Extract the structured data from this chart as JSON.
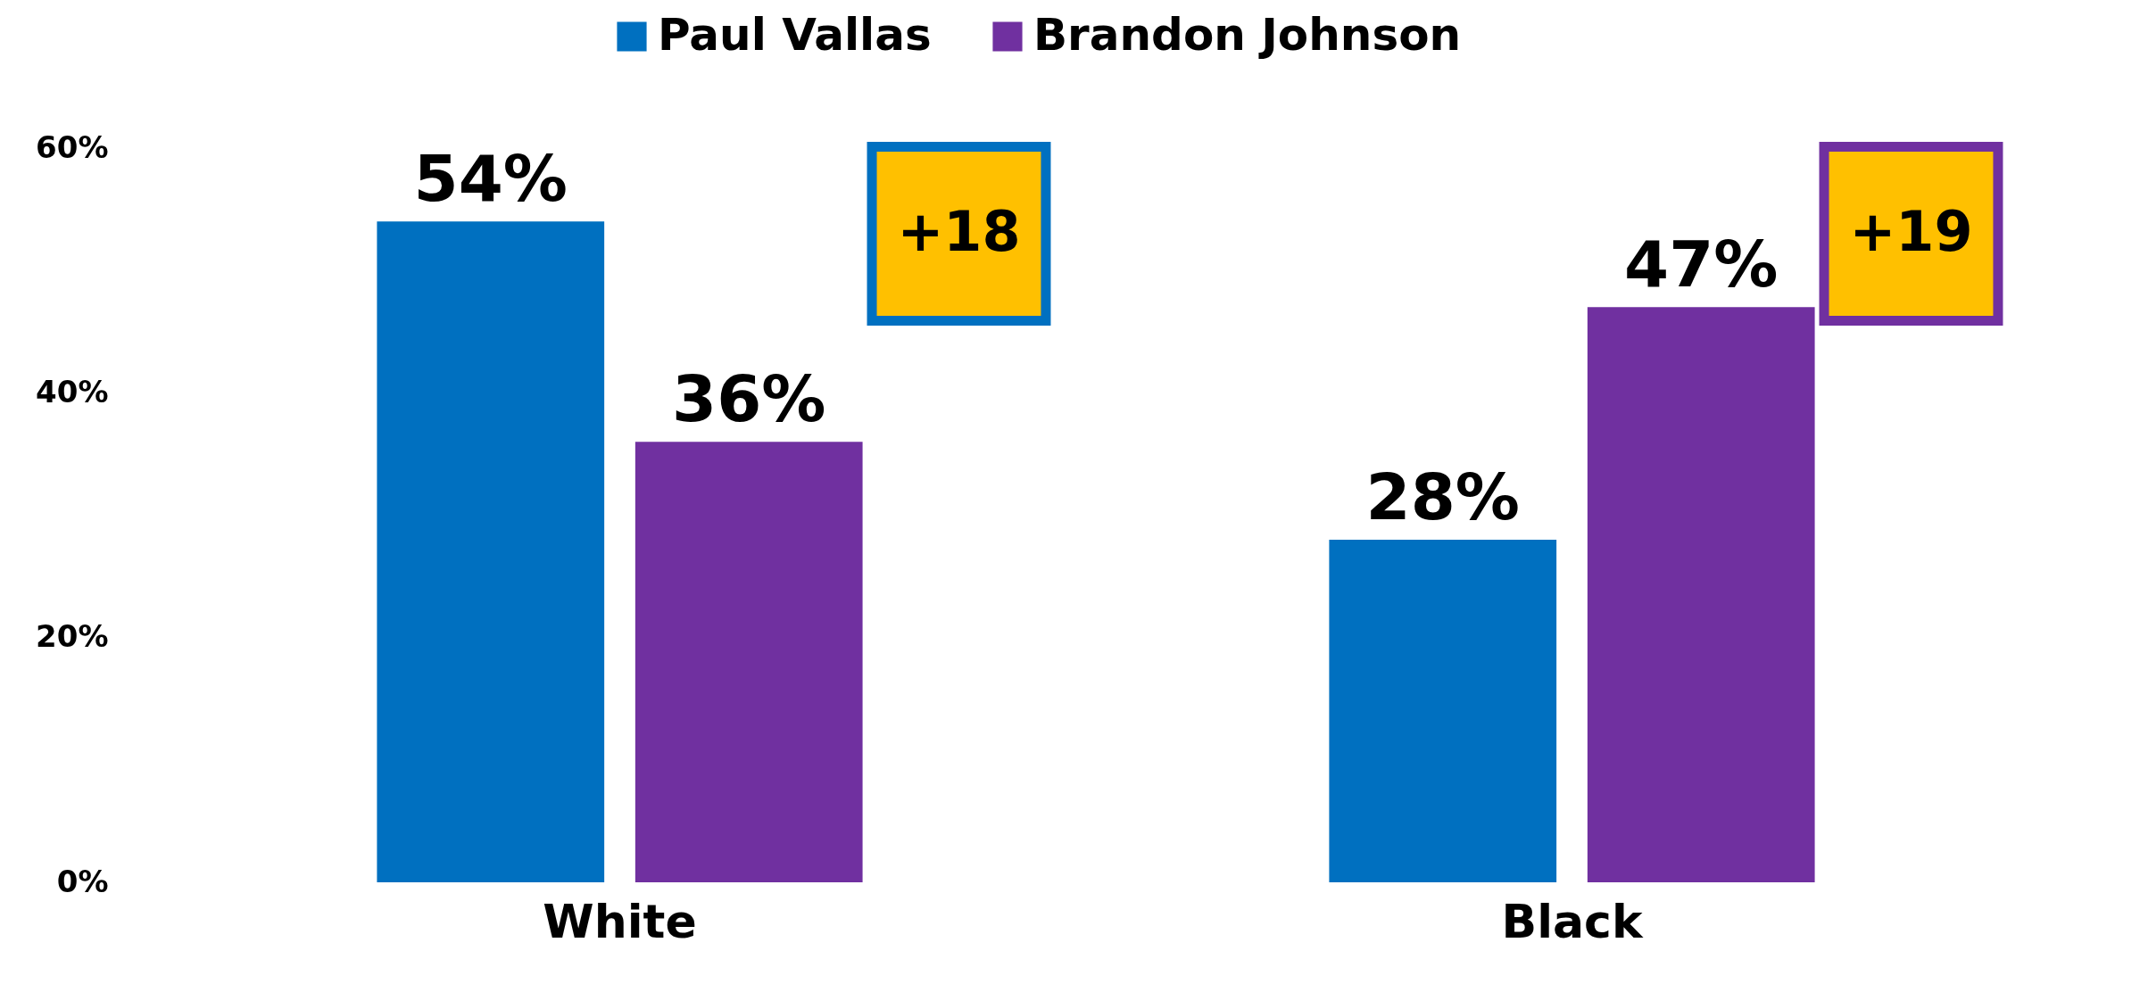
{
  "chart_data": {
    "type": "bar",
    "categories": [
      "White",
      "Black"
    ],
    "series": [
      {
        "name": "Paul Vallas",
        "color": "#0070c0",
        "values": [
          54,
          28
        ],
        "value_labels": [
          "54%",
          "28%"
        ]
      },
      {
        "name": "Brandon Johnson",
        "color": "#7030a0",
        "values": [
          36,
          47
        ],
        "value_labels": [
          "36%",
          "47%"
        ]
      }
    ],
    "ylim": [
      0,
      60
    ],
    "yticks": [
      {
        "value": 0,
        "label": "0%"
      },
      {
        "value": 20,
        "label": "20%"
      },
      {
        "value": 40,
        "label": "40%"
      },
      {
        "value": 60,
        "label": "60%"
      }
    ],
    "annotations": [
      "+18",
      "+19"
    ],
    "grid": false,
    "legend": "top"
  }
}
